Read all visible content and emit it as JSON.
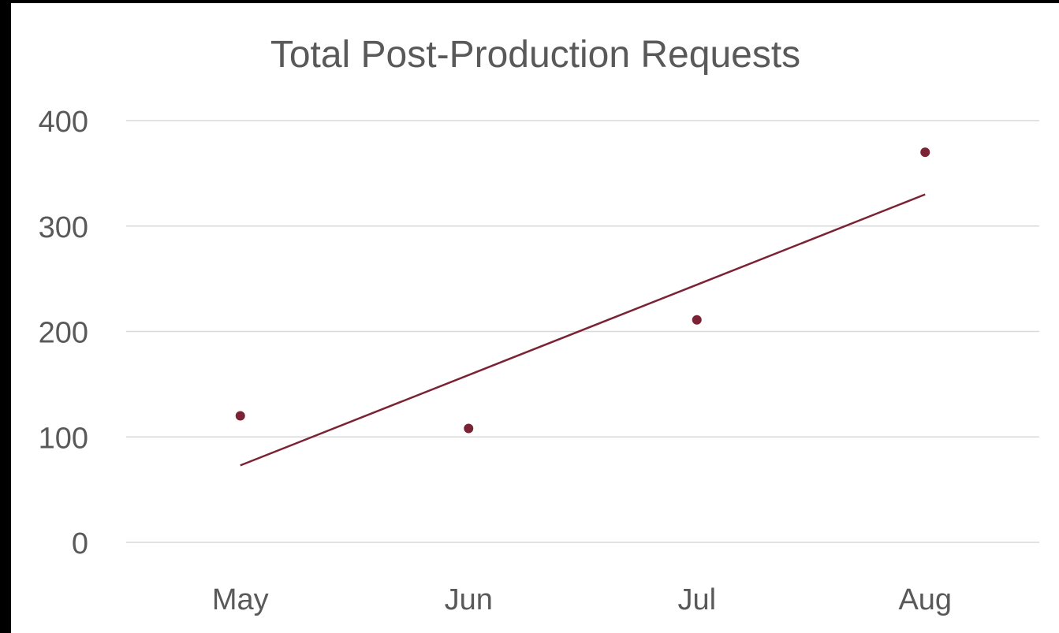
{
  "chart_data": {
    "type": "scatter",
    "title": "Total Post-Production Requests",
    "categories": [
      "May",
      "Jun",
      "Jul",
      "Aug"
    ],
    "values": [
      120,
      108,
      211,
      370
    ],
    "trendline": {
      "type": "linear",
      "start": 73,
      "end": 330
    },
    "ylim": [
      0,
      400
    ],
    "yticks": [
      "0",
      "100",
      "200",
      "300",
      "400"
    ],
    "grid": true,
    "legend": "none",
    "colors": {
      "marker": "#7b2335",
      "trendline": "#7b2335",
      "grid": "#d9d9d9",
      "text": "#595959"
    }
  }
}
